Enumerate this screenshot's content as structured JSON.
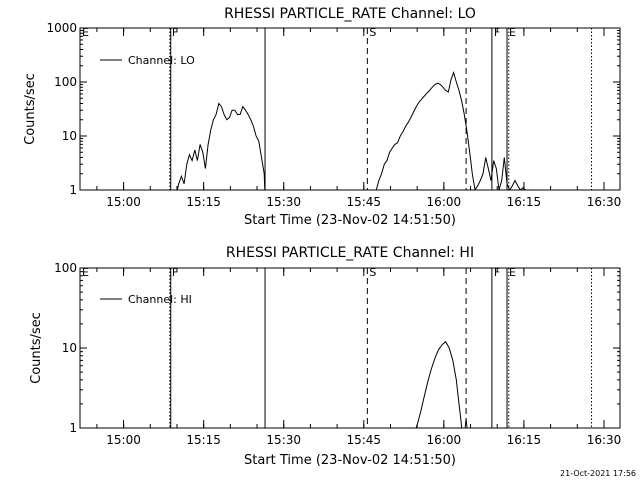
{
  "footer": {
    "timestamp": "21-Oct-2021 17:56"
  },
  "chart_data": [
    {
      "type": "line",
      "title": "RHESSI PARTICLE_RATE Channel: LO",
      "xlabel": "Start Time (23-Nov-02 14:51:50)",
      "ylabel": "Counts/sec",
      "yscale": "log",
      "ylim": [
        1,
        1000
      ],
      "yticks": [
        {
          "value": 1,
          "label": "1"
        },
        {
          "value": 10,
          "label": "10"
        },
        {
          "value": 100,
          "label": "100"
        },
        {
          "value": 1000,
          "label": "1000"
        }
      ],
      "xlim": [
        "14:51:50",
        "16:33:00"
      ],
      "xticks": [
        "15:00",
        "15:15",
        "15:30",
        "15:45",
        "16:00",
        "16:15",
        "16:30"
      ],
      "legend": {
        "position": "top-left",
        "entries": [
          "Channel: LO"
        ]
      },
      "markers": [
        {
          "time": "14:51:50",
          "style": "dotted",
          "label": "E"
        },
        {
          "time": "15:08:40",
          "style": "dotted",
          "label": "F"
        },
        {
          "time": "15:08:50",
          "style": "solid",
          "label": ""
        },
        {
          "time": "15:26:30",
          "style": "solid",
          "label": ""
        },
        {
          "time": "15:45:40",
          "style": "dashed",
          "label": "S"
        },
        {
          "time": "16:04:10",
          "style": "dashed",
          "label": ""
        },
        {
          "time": "16:09:00",
          "style": "solid",
          "label": "F"
        },
        {
          "time": "16:11:50",
          "style": "solid",
          "label": "E"
        },
        {
          "time": "16:12:10",
          "style": "dotted",
          "label": ""
        },
        {
          "time": "16:27:40",
          "style": "dotted",
          "label": ""
        }
      ],
      "segments": [
        {
          "x": [
            "15:09:20",
            "15:09:50",
            "15:10:20",
            "15:10:50",
            "15:11:20",
            "15:11:50",
            "15:12:20",
            "15:12:50",
            "15:13:20",
            "15:13:50",
            "15:14:20",
            "15:14:50",
            "15:15:20",
            "15:15:50",
            "15:16:20",
            "15:16:50",
            "15:17:20",
            "15:17:50",
            "15:18:20",
            "15:18:50",
            "15:19:20",
            "15:19:50",
            "15:20:20",
            "15:20:50",
            "15:21:20",
            "15:21:50",
            "15:22:20",
            "15:22:50",
            "15:23:20",
            "15:23:50",
            "15:24:20",
            "15:24:50",
            "15:25:20",
            "15:25:50",
            "15:26:20",
            "15:26:30"
          ],
          "y": [
            1,
            0.8,
            1.3,
            1.8,
            1.3,
            3,
            4.5,
            3.5,
            5.5,
            3.5,
            7,
            5,
            2.5,
            7,
            13,
            20,
            25,
            40,
            35,
            25,
            20,
            22,
            30,
            30,
            25,
            25,
            35,
            30,
            25,
            20,
            15,
            10,
            8,
            4,
            2,
            0.8
          ]
        },
        {
          "x": [
            "15:47:20",
            "15:47:50",
            "15:48:20",
            "15:48:50",
            "15:49:20",
            "15:49:50",
            "15:50:20",
            "15:50:50",
            "15:51:20",
            "15:51:50",
            "15:52:20",
            "15:52:50",
            "15:53:20",
            "15:53:50",
            "15:54:20",
            "15:54:50",
            "15:55:20",
            "15:55:50",
            "15:56:20",
            "15:56:50",
            "15:57:20",
            "15:57:50",
            "15:58:20",
            "15:58:50",
            "15:59:20",
            "15:59:50",
            "16:00:20",
            "16:00:50",
            "16:01:20",
            "16:01:50",
            "16:02:20",
            "16:02:50",
            "16:03:20",
            "16:03:50",
            "16:04:20",
            "16:04:50",
            "16:05:20",
            "16:05:50",
            "16:06:20",
            "16:06:50",
            "16:07:20",
            "16:07:50",
            "16:08:20",
            "16:08:50",
            "16:09:20",
            "16:09:50",
            "16:10:20",
            "16:10:50",
            "16:11:20",
            "16:11:50",
            "16:12:20",
            "16:12:50",
            "16:13:20",
            "16:13:50",
            "16:14:20",
            "16:14:50",
            "16:15:20",
            "16:15:50",
            "16:16:20",
            "16:16:50"
          ],
          "y": [
            1,
            1.5,
            2,
            3,
            3.5,
            5,
            6,
            7,
            7.5,
            10,
            12,
            15,
            18,
            22,
            28,
            35,
            42,
            48,
            55,
            62,
            70,
            80,
            90,
            95,
            90,
            80,
            70,
            65,
            110,
            150,
            100,
            70,
            45,
            25,
            12,
            5,
            2,
            1,
            1.2,
            1.5,
            2,
            4,
            2.5,
            1.5,
            3.5,
            2.5,
            1,
            1.5,
            4,
            1.3,
            1,
            1.2,
            1.5,
            1.2,
            1,
            1.1,
            1,
            0.8,
            1,
            0.8
          ]
        }
      ]
    },
    {
      "type": "line",
      "title": "RHESSI PARTICLE_RATE Channel: HI",
      "xlabel": "Start Time (23-Nov-02 14:51:50)",
      "ylabel": "Counts/sec",
      "yscale": "log",
      "ylim": [
        1,
        100
      ],
      "yticks": [
        {
          "value": 1,
          "label": "1"
        },
        {
          "value": 10,
          "label": "10"
        },
        {
          "value": 100,
          "label": "100"
        }
      ],
      "xlim": [
        "14:51:50",
        "16:33:00"
      ],
      "xticks": [
        "15:00",
        "15:15",
        "15:30",
        "15:45",
        "16:00",
        "16:15",
        "16:30"
      ],
      "legend": {
        "position": "top-left",
        "entries": [
          "Channel: HI"
        ]
      },
      "markers": [
        {
          "time": "14:51:50",
          "style": "dotted",
          "label": "E"
        },
        {
          "time": "15:08:40",
          "style": "dotted",
          "label": "F"
        },
        {
          "time": "15:08:50",
          "style": "solid",
          "label": ""
        },
        {
          "time": "15:26:30",
          "style": "solid",
          "label": ""
        },
        {
          "time": "15:45:40",
          "style": "dashed",
          "label": "S"
        },
        {
          "time": "16:04:10",
          "style": "dashed",
          "label": ""
        },
        {
          "time": "16:09:00",
          "style": "solid",
          "label": "F"
        },
        {
          "time": "16:11:50",
          "style": "solid",
          "label": "E"
        },
        {
          "time": "16:12:10",
          "style": "dotted",
          "label": ""
        },
        {
          "time": "16:27:40",
          "style": "dotted",
          "label": ""
        }
      ],
      "segments": [
        {
          "x": [
            "15:54:20",
            "15:55:00",
            "15:55:40",
            "15:56:20",
            "15:57:00",
            "15:57:40",
            "15:58:20",
            "15:59:00",
            "15:59:40",
            "16:00:20",
            "16:01:00",
            "16:01:40",
            "16:02:20",
            "16:02:50",
            "16:03:10",
            "16:03:30"
          ],
          "y": [
            0.8,
            1.1,
            1.6,
            2.5,
            3.8,
            5.5,
            7.5,
            9.5,
            11,
            12,
            10,
            7,
            4,
            2,
            1.3,
            0.8
          ]
        },
        {
          "x": [
            "16:03:50",
            "16:04:10",
            "16:04:30"
          ],
          "y": [
            0.8,
            1.3,
            0.8
          ]
        }
      ]
    }
  ]
}
